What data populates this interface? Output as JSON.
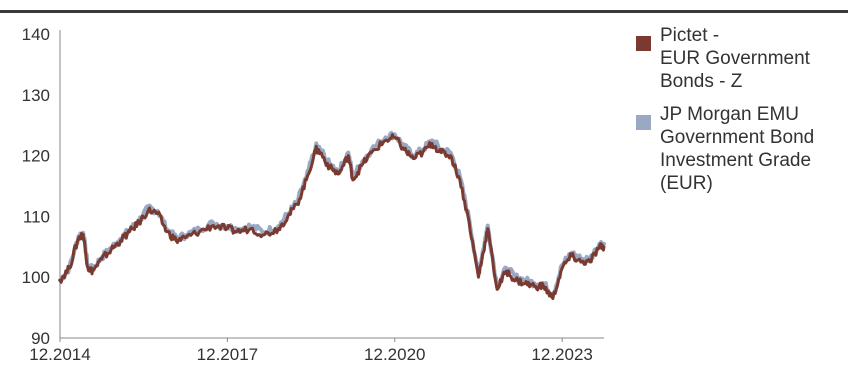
{
  "chart_data": {
    "type": "line",
    "x_ticks": [
      "12.2014",
      "12.2017",
      "12.2020",
      "12.2023"
    ],
    "y_ticks": [
      90,
      100,
      110,
      120,
      130,
      140
    ],
    "ylim": [
      90,
      140
    ],
    "xlim": [
      "2014-12",
      "2024-09"
    ],
    "grid": false,
    "legend_position": "right",
    "series": [
      {
        "name": "Pictet - EUR Government Bonds - Z",
        "color": "#7b3a30",
        "points": [
          [
            "2014-12",
            99.5
          ],
          [
            "2015-02",
            101.5
          ],
          [
            "2015-04",
            106.5
          ],
          [
            "2015-05",
            107
          ],
          [
            "2015-06",
            101.5
          ],
          [
            "2015-07",
            101
          ],
          [
            "2015-09",
            103
          ],
          [
            "2015-11",
            104.5
          ],
          [
            "2016-01",
            106
          ],
          [
            "2016-03",
            107.5
          ],
          [
            "2016-05",
            109
          ],
          [
            "2016-07",
            111
          ],
          [
            "2016-09",
            110.5
          ],
          [
            "2016-11",
            107.5
          ],
          [
            "2017-01",
            106
          ],
          [
            "2017-03",
            106.5
          ],
          [
            "2017-06",
            107.5
          ],
          [
            "2017-09",
            108.5
          ],
          [
            "2017-12",
            108
          ],
          [
            "2018-02",
            107.5
          ],
          [
            "2018-05",
            108
          ],
          [
            "2018-08",
            107
          ],
          [
            "2018-11",
            108
          ],
          [
            "2019-01",
            110
          ],
          [
            "2019-03",
            112
          ],
          [
            "2019-05",
            116
          ],
          [
            "2019-07",
            121
          ],
          [
            "2019-08",
            120.5
          ],
          [
            "2019-10",
            118
          ],
          [
            "2019-12",
            117
          ],
          [
            "2020-02",
            120
          ],
          [
            "2020-03",
            116
          ],
          [
            "2020-05",
            118.5
          ],
          [
            "2020-07",
            120.5
          ],
          [
            "2020-10",
            122.5
          ],
          [
            "2020-12",
            123
          ],
          [
            "2021-02",
            121
          ],
          [
            "2021-04",
            119.5
          ],
          [
            "2021-06",
            120.5
          ],
          [
            "2021-08",
            122
          ],
          [
            "2021-10",
            120.5
          ],
          [
            "2021-12",
            120
          ],
          [
            "2022-02",
            116
          ],
          [
            "2022-04",
            109
          ],
          [
            "2022-06",
            100
          ],
          [
            "2022-07",
            104
          ],
          [
            "2022-08",
            108
          ],
          [
            "2022-10",
            98
          ],
          [
            "2022-12",
            101
          ],
          [
            "2023-02",
            99.5
          ],
          [
            "2023-04",
            99
          ],
          [
            "2023-06",
            98.5
          ],
          [
            "2023-08",
            98.5
          ],
          [
            "2023-10",
            96.5
          ],
          [
            "2023-12",
            101.5
          ],
          [
            "2024-02",
            103.5
          ],
          [
            "2024-04",
            102.5
          ],
          [
            "2024-06",
            102.5
          ],
          [
            "2024-08",
            105
          ],
          [
            "2024-09",
            105
          ]
        ]
      },
      {
        "name": "JP Morgan EMU Government Bond Investment Grade (EUR)",
        "color": "#9aa9c3",
        "points": [
          [
            "2014-12",
            99.5
          ],
          [
            "2015-02",
            101.5
          ],
          [
            "2015-04",
            106.8
          ],
          [
            "2015-05",
            107.3
          ],
          [
            "2015-06",
            101.8
          ],
          [
            "2015-07",
            101.3
          ],
          [
            "2015-09",
            103.3
          ],
          [
            "2015-11",
            104.8
          ],
          [
            "2016-01",
            106.3
          ],
          [
            "2016-03",
            107.8
          ],
          [
            "2016-05",
            109.3
          ],
          [
            "2016-07",
            111.4
          ],
          [
            "2016-09",
            110.9
          ],
          [
            "2016-11",
            107.9
          ],
          [
            "2017-01",
            106.4
          ],
          [
            "2017-03",
            106.9
          ],
          [
            "2017-06",
            107.9
          ],
          [
            "2017-09",
            108.9
          ],
          [
            "2017-12",
            108.4
          ],
          [
            "2018-02",
            107.9
          ],
          [
            "2018-05",
            108.4
          ],
          [
            "2018-08",
            107.4
          ],
          [
            "2018-11",
            108.4
          ],
          [
            "2019-01",
            110.4
          ],
          [
            "2019-03",
            112.4
          ],
          [
            "2019-05",
            116.4
          ],
          [
            "2019-07",
            121.5
          ],
          [
            "2019-08",
            121
          ],
          [
            "2019-10",
            118.5
          ],
          [
            "2019-12",
            117.5
          ],
          [
            "2020-02",
            120.5
          ],
          [
            "2020-03",
            116.5
          ],
          [
            "2020-05",
            119
          ],
          [
            "2020-07",
            121
          ],
          [
            "2020-10",
            123
          ],
          [
            "2020-12",
            123.5
          ],
          [
            "2021-02",
            121.5
          ],
          [
            "2021-04",
            120
          ],
          [
            "2021-06",
            121
          ],
          [
            "2021-08",
            122.5
          ],
          [
            "2021-10",
            121
          ],
          [
            "2021-12",
            120.5
          ],
          [
            "2022-02",
            116.5
          ],
          [
            "2022-04",
            109.5
          ],
          [
            "2022-06",
            100.5
          ],
          [
            "2022-07",
            104.5
          ],
          [
            "2022-08",
            108.5
          ],
          [
            "2022-10",
            98.5
          ],
          [
            "2022-12",
            101.5
          ],
          [
            "2023-02",
            100
          ],
          [
            "2023-04",
            99.5
          ],
          [
            "2023-06",
            99
          ],
          [
            "2023-08",
            99
          ],
          [
            "2023-10",
            97
          ],
          [
            "2023-12",
            102
          ],
          [
            "2024-02",
            104
          ],
          [
            "2024-04",
            103
          ],
          [
            "2024-06",
            103
          ],
          [
            "2024-08",
            105.5
          ],
          [
            "2024-09",
            105.5
          ]
        ]
      }
    ]
  },
  "legend": {
    "items": [
      {
        "lines": [
          "Pictet -",
          "EUR Government",
          "Bonds - Z"
        ],
        "color": "#7b3a30"
      },
      {
        "lines": [
          "JP Morgan EMU",
          "Government Bond",
          "Investment Grade",
          "(EUR)"
        ],
        "color": "#9aa9c3"
      }
    ]
  }
}
